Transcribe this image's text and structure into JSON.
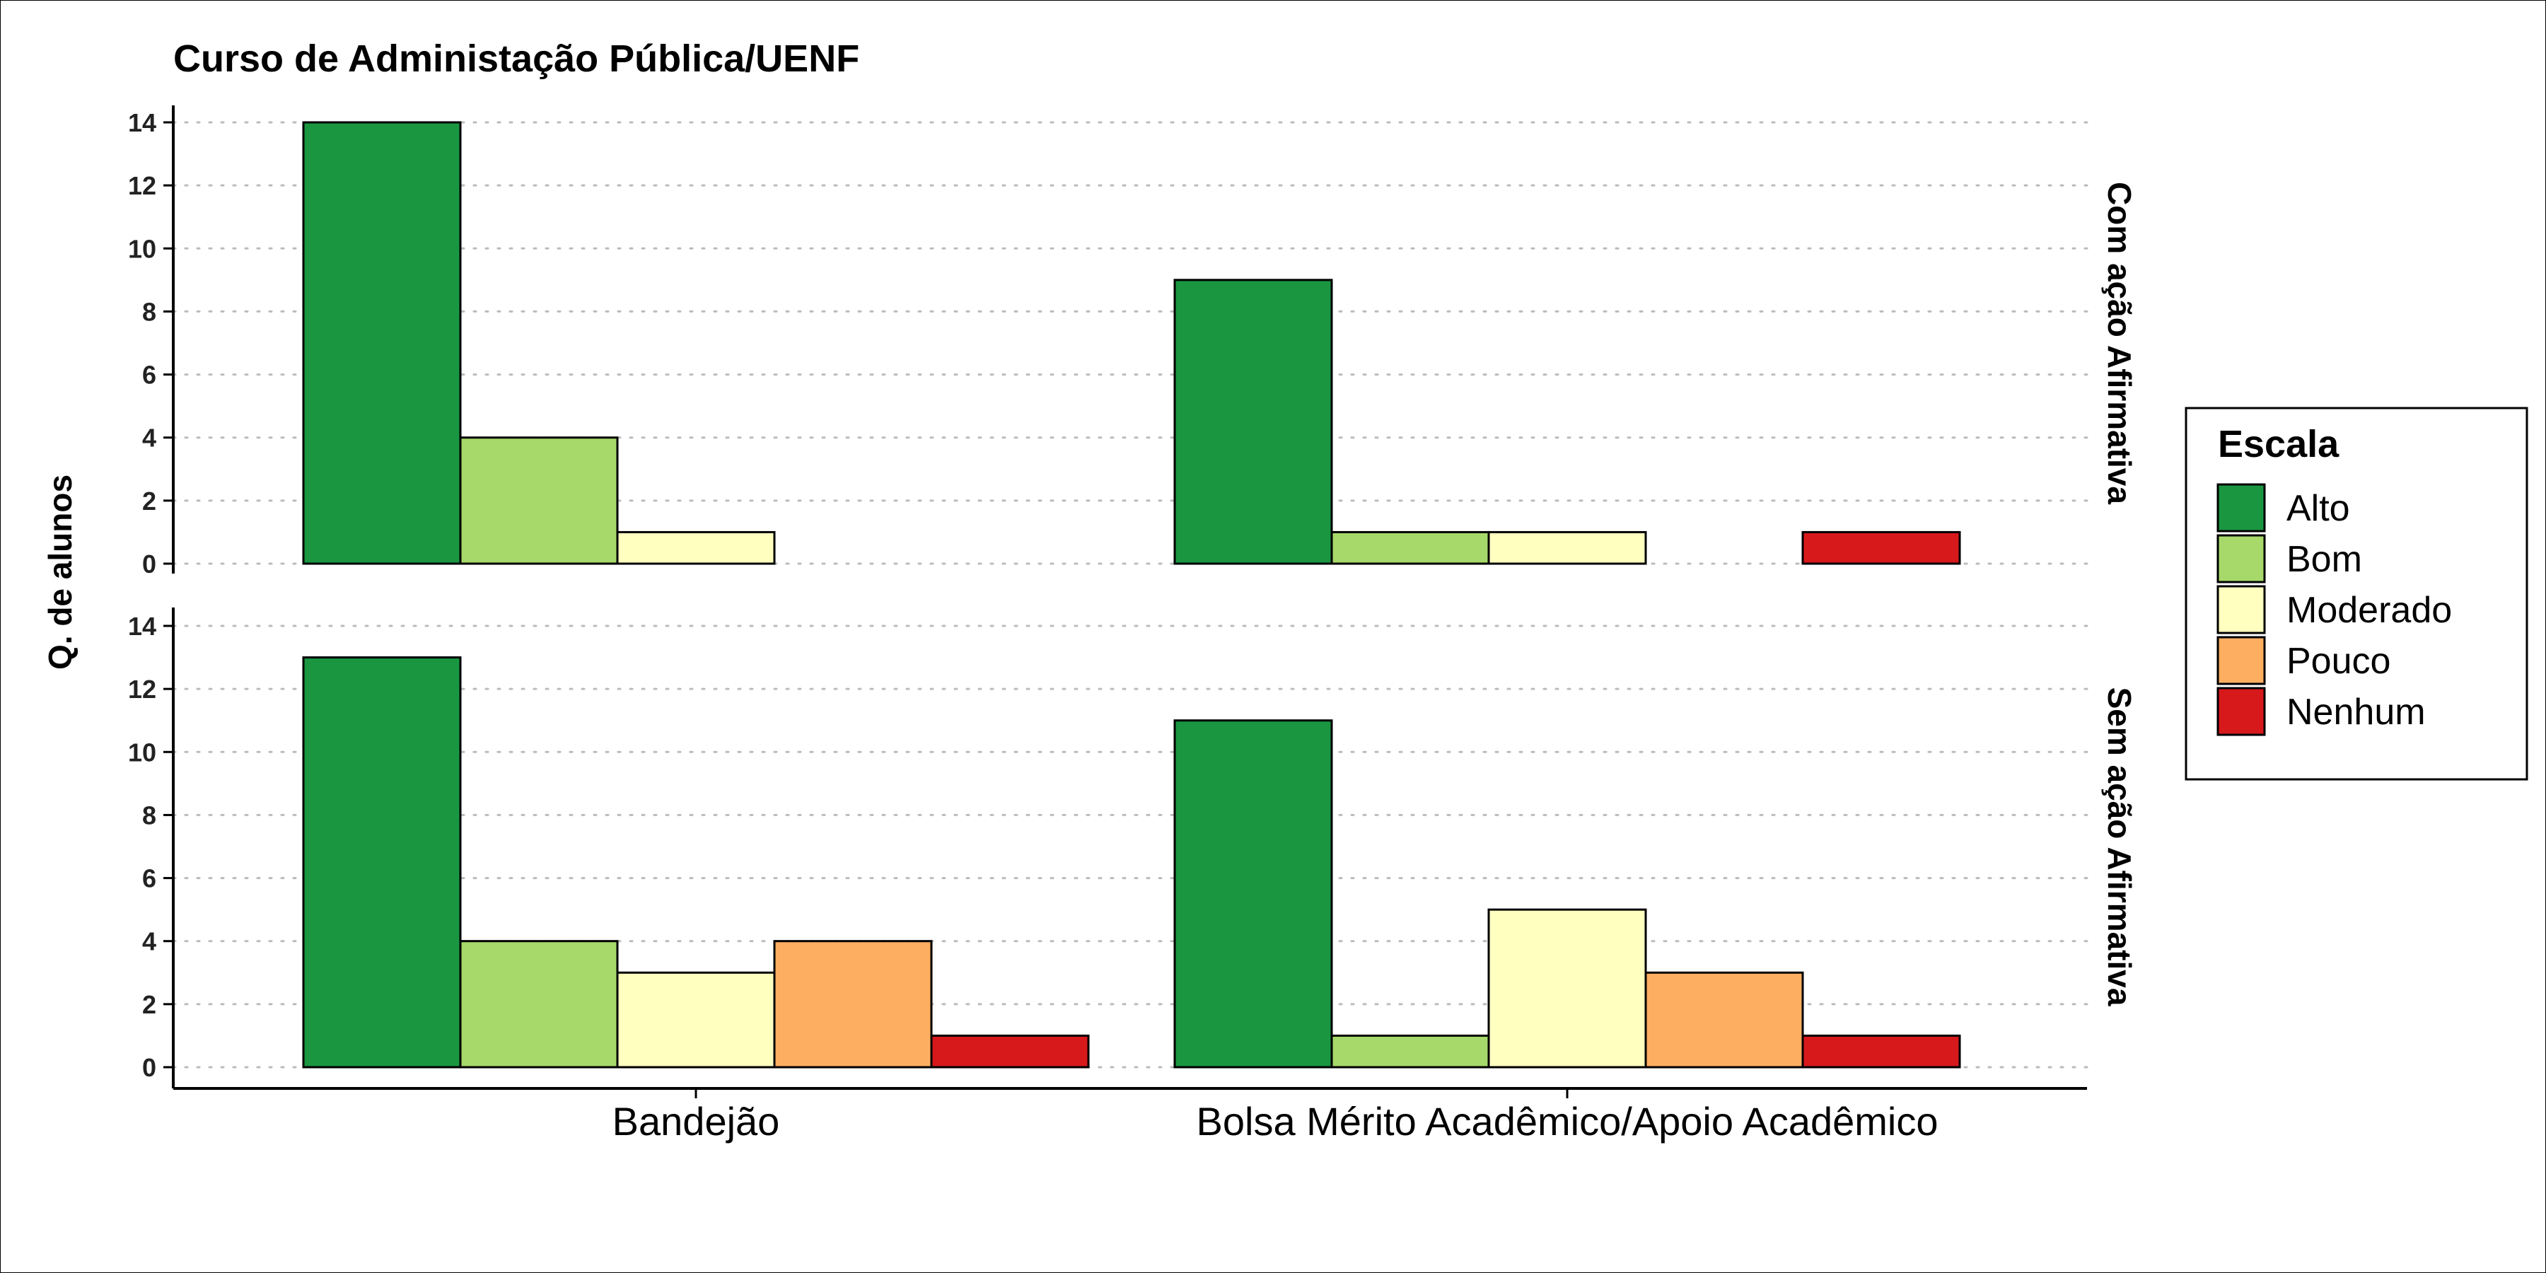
{
  "chart_data": {
    "type": "bar",
    "title": "Curso de Administação Pública/UENF",
    "xlabel": "",
    "ylabel": "Q. de alunos",
    "categories": [
      "Bandejão",
      "Bolsa Mérito Acadêmico/Apoio Acadêmico"
    ],
    "ylim": [
      0,
      14
    ],
    "yticks": [
      0,
      2,
      4,
      6,
      8,
      10,
      12,
      14
    ],
    "grid": "horizontal-dotted",
    "legend": {
      "title": "Escala",
      "placement": "right",
      "items": [
        {
          "name": "Alto",
          "color": "#1a9641"
        },
        {
          "name": "Bom",
          "color": "#a6d96a"
        },
        {
          "name": "Moderado",
          "color": "#ffffbf"
        },
        {
          "name": "Pouco",
          "color": "#fdae61"
        },
        {
          "name": "Nenhum",
          "color": "#d7191c"
        }
      ]
    },
    "facets": [
      {
        "label": "Com ação Afirmativa",
        "series": [
          {
            "name": "Alto",
            "values": [
              14,
              9
            ]
          },
          {
            "name": "Bom",
            "values": [
              4,
              1
            ]
          },
          {
            "name": "Moderado",
            "values": [
              1,
              1
            ]
          },
          {
            "name": "Pouco",
            "values": [
              0,
              0
            ]
          },
          {
            "name": "Nenhum",
            "values": [
              0,
              1
            ]
          }
        ]
      },
      {
        "label": "Sem ação Afirmativa",
        "series": [
          {
            "name": "Alto",
            "values": [
              13,
              11
            ]
          },
          {
            "name": "Bom",
            "values": [
              4,
              1
            ]
          },
          {
            "name": "Moderado",
            "values": [
              3,
              5
            ]
          },
          {
            "name": "Pouco",
            "values": [
              4,
              3
            ]
          },
          {
            "name": "Nenhum",
            "values": [
              1,
              1
            ]
          }
        ]
      }
    ]
  }
}
